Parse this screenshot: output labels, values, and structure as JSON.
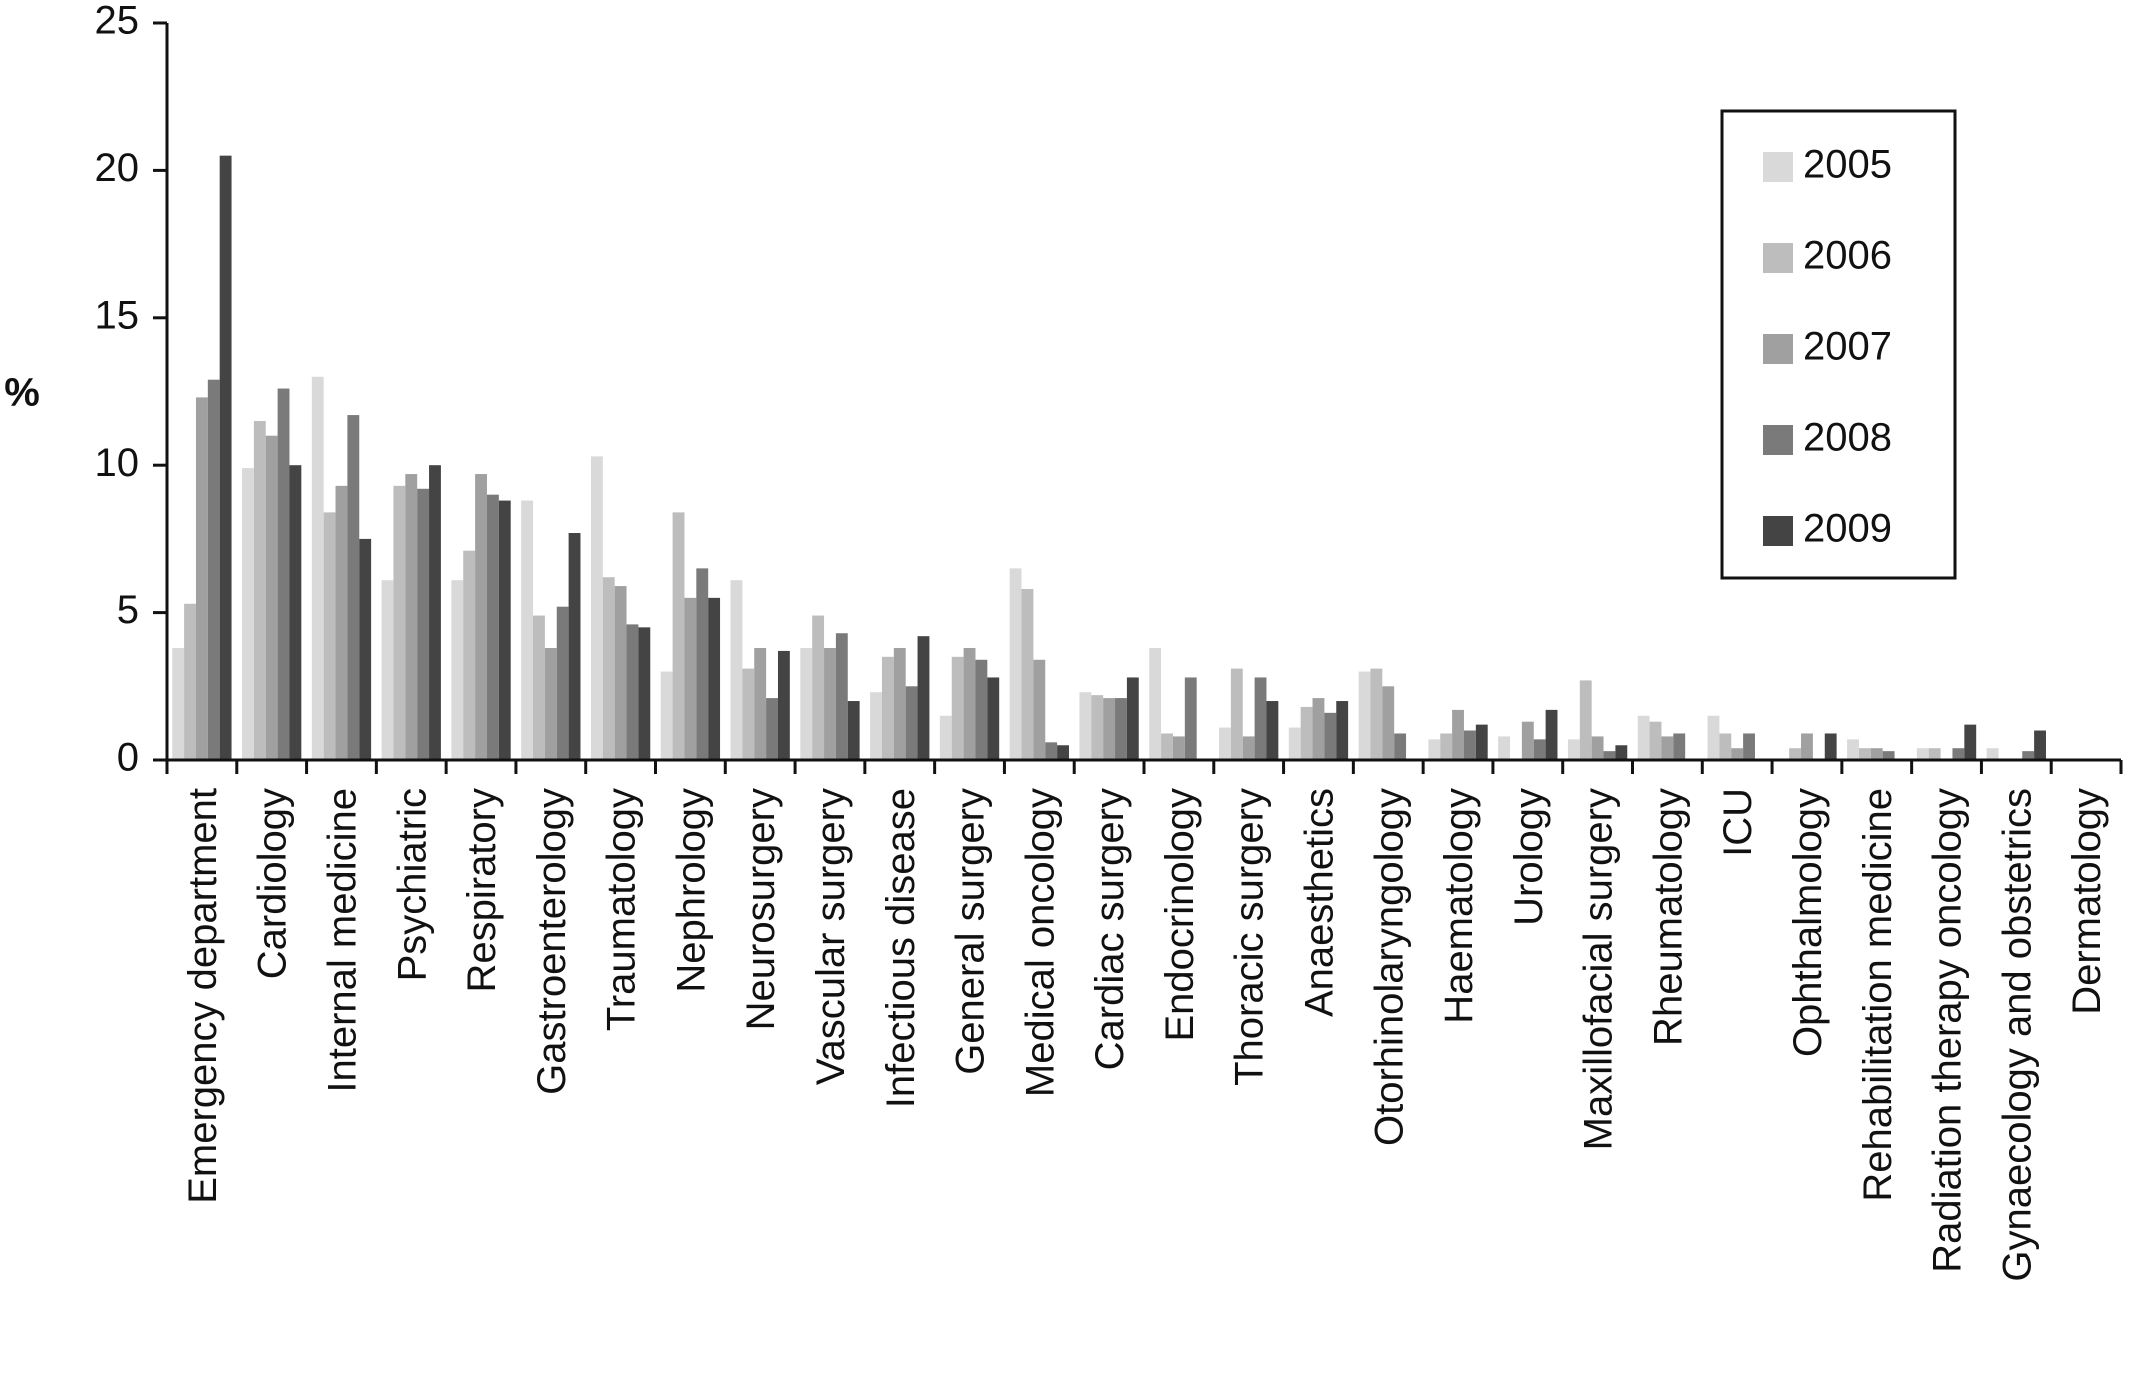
{
  "chart_data": {
    "type": "bar",
    "y_label": "%",
    "categories": [
      "Emergency department",
      "Cardiology",
      "Internal medicine",
      "Psychiatric",
      "Respiratory",
      "Gastroenterology",
      "Traumatology",
      "Nephrology",
      "Neurosurgery",
      "Vascular surgery",
      "Infectious disease",
      "General surgery",
      "Medical oncology",
      "Cardiac surgery",
      "Endocrinology",
      "Thoracic surgery",
      "Anaesthetics",
      "Otorhinolaryngology",
      "Haematology",
      "Urology",
      "Maxillofacial surgery",
      "Rheumatology",
      "ICU",
      "Ophthalmology",
      "Rehabilitation medicine",
      "Radiation therapy oncology",
      "Gynaecology and obstetrics",
      "Dermatology"
    ],
    "series": [
      {
        "name": "2005",
        "color": "#d9d9d9",
        "values": [
          3.8,
          9.9,
          13.0,
          6.1,
          6.1,
          8.8,
          10.3,
          3.0,
          6.1,
          3.8,
          2.3,
          1.5,
          6.5,
          2.3,
          3.8,
          1.1,
          1.1,
          3.0,
          0.7,
          0.8,
          0.7,
          1.5,
          1.5,
          0,
          0.7,
          0.4,
          0.4,
          0
        ]
      },
      {
        "name": "2006",
        "color": "#bdbdbd",
        "values": [
          5.3,
          11.5,
          8.4,
          9.3,
          7.1,
          4.9,
          6.2,
          8.4,
          3.1,
          4.9,
          3.5,
          3.5,
          5.8,
          2.2,
          0.9,
          3.1,
          1.8,
          3.1,
          0.9,
          0,
          2.7,
          1.3,
          0.9,
          0.4,
          0.4,
          0.4,
          0,
          0
        ]
      },
      {
        "name": "2007",
        "color": "#a0a0a0",
        "values": [
          12.3,
          11.0,
          9.3,
          9.7,
          9.7,
          3.8,
          5.9,
          5.5,
          3.8,
          3.8,
          3.8,
          3.8,
          3.4,
          2.1,
          0.8,
          0.8,
          2.1,
          2.5,
          1.7,
          1.3,
          0.8,
          0.8,
          0.4,
          0.9,
          0.4,
          0,
          0,
          0
        ]
      },
      {
        "name": "2008",
        "color": "#7a7a7a",
        "values": [
          12.9,
          12.6,
          11.7,
          9.2,
          9.0,
          5.2,
          4.6,
          6.5,
          2.1,
          4.3,
          2.5,
          3.4,
          0.6,
          2.1,
          2.8,
          2.8,
          1.6,
          0.9,
          1.0,
          0.7,
          0.3,
          0.9,
          0.9,
          0,
          0.3,
          0.4,
          0.3,
          0
        ]
      },
      {
        "name": "2009",
        "color": "#444444",
        "values": [
          20.5,
          10.0,
          7.5,
          10.0,
          8.8,
          7.7,
          4.5,
          5.5,
          3.7,
          2.0,
          4.2,
          2.8,
          0.5,
          2.8,
          0,
          2.0,
          2.0,
          0,
          1.2,
          1.7,
          0.5,
          0,
          0,
          0.9,
          0,
          1.2,
          1.0,
          0
        ]
      }
    ],
    "ylim": [
      0,
      25
    ],
    "yticks": [
      0,
      5,
      10,
      15,
      20,
      25
    ],
    "grid": false,
    "legend": "top-right"
  }
}
